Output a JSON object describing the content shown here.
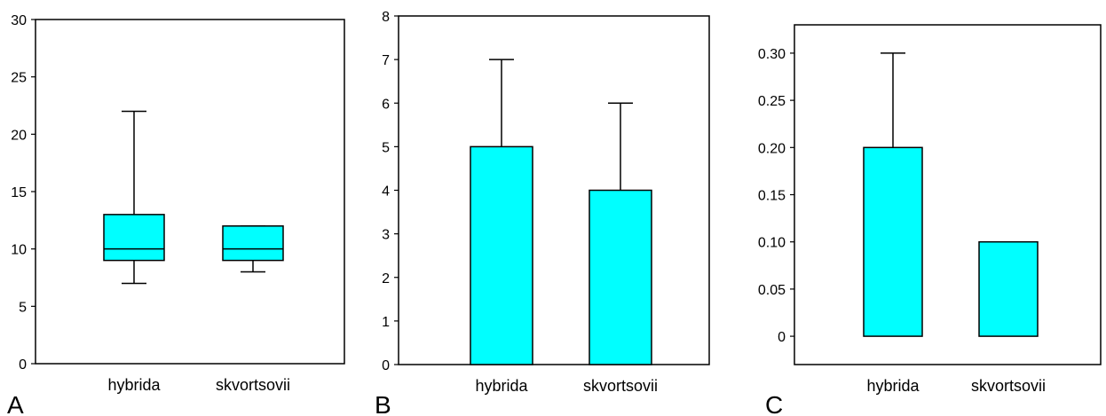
{
  "colors": {
    "fill": "#00ffff",
    "stroke": "#000000",
    "background": "#ffffff"
  },
  "chart_data": [
    {
      "type": "box",
      "panel_label": "A",
      "categories": [
        "hybrida",
        "skvortsovii"
      ],
      "boxes": [
        {
          "whisker_low": 7,
          "q1": 9,
          "median": 10,
          "q3": 13,
          "whisker_high": 22
        },
        {
          "whisker_low": 8,
          "q1": 9,
          "median": 10,
          "q3": 12,
          "whisker_high": 12
        }
      ],
      "ylim": [
        0,
        30
      ],
      "yticks": [
        "0",
        "5",
        "10",
        "15",
        "20",
        "25",
        "30"
      ],
      "grid": false
    },
    {
      "type": "bar",
      "panel_label": "B",
      "categories": [
        "hybrida",
        "skvortsovii"
      ],
      "values": [
        5,
        4
      ],
      "error_upper": [
        7,
        6
      ],
      "ylim": [
        0,
        8
      ],
      "yticks": [
        "0",
        "1",
        "2",
        "3",
        "4",
        "5",
        "6",
        "7",
        "8"
      ],
      "grid": false
    },
    {
      "type": "bar",
      "panel_label": "C",
      "categories": [
        "hybrida",
        "skvortsovii"
      ],
      "values": [
        0.2,
        0.1
      ],
      "error_upper": [
        0.3,
        null
      ],
      "ylim": [
        -0.03,
        0.33
      ],
      "yticks": [
        "0",
        "0.05",
        "0.10",
        "0.15",
        "0.20",
        "0.25",
        "0.30"
      ],
      "grid": false
    }
  ]
}
